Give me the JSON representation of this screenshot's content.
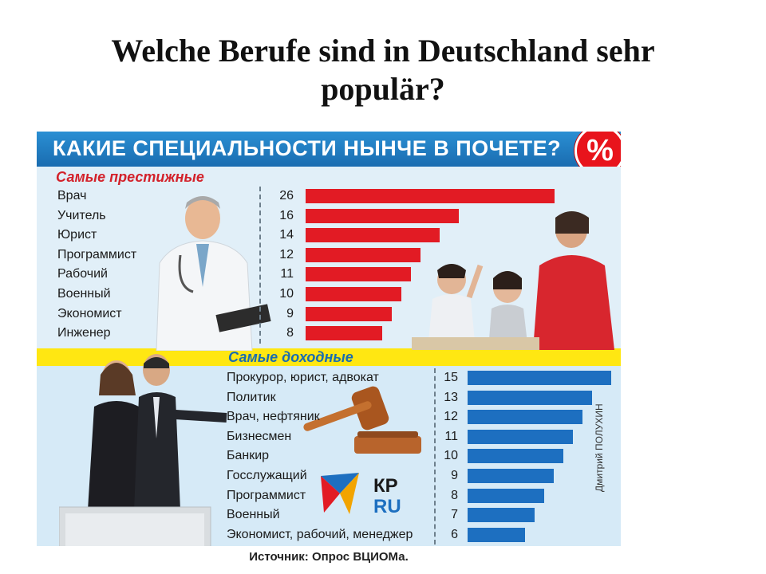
{
  "slide": {
    "title": "Welche Berufe sind in Deutschland sehr\npopulär?"
  },
  "infographic": {
    "header": "КАКИЕ СПЕЦИАЛЬНОСТИ НЫНЧЕ В ПОЧЕТЕ?",
    "badge": "%",
    "source": "Источник: Опрос ВЦИОМа.",
    "credit": "Дмитрий ПОЛУХИН",
    "logo_text": [
      "КР",
      "RU"
    ]
  },
  "colors": {
    "header": "#1a6cb0",
    "prestige_bar": "#e21b24",
    "income_bar": "#1d6fc0",
    "band": "#ffe712"
  },
  "chart_data": [
    {
      "type": "bar",
      "title": "Самые престижные",
      "categories": [
        "Врач",
        "Учитель",
        "Юрист",
        "Программист",
        "Рабочий",
        "Военный",
        "Экономист",
        "Инженер"
      ],
      "values": [
        26,
        16,
        14,
        12,
        11,
        10,
        9,
        8
      ],
      "value_labels": [
        "26",
        "16",
        "14",
        "12",
        "11",
        "10",
        "9",
        "8"
      ],
      "color": "#e21b24"
    },
    {
      "type": "bar",
      "title": "Самые доходные",
      "categories": [
        "Прокурор, юрист, адвокат",
        "Политик",
        "Врач, нефтяник",
        "Бизнесмен",
        "Банкир",
        "Госслужащий",
        "Программист",
        "Военный",
        "Экономист, рабочий, менеджер"
      ],
      "values": [
        15,
        13,
        12,
        11,
        10,
        9,
        8,
        7,
        6
      ],
      "value_labels": [
        "15",
        "13",
        "12",
        "11",
        "10",
        "9",
        "8",
        "7",
        "6"
      ],
      "color": "#1d6fc0"
    }
  ]
}
